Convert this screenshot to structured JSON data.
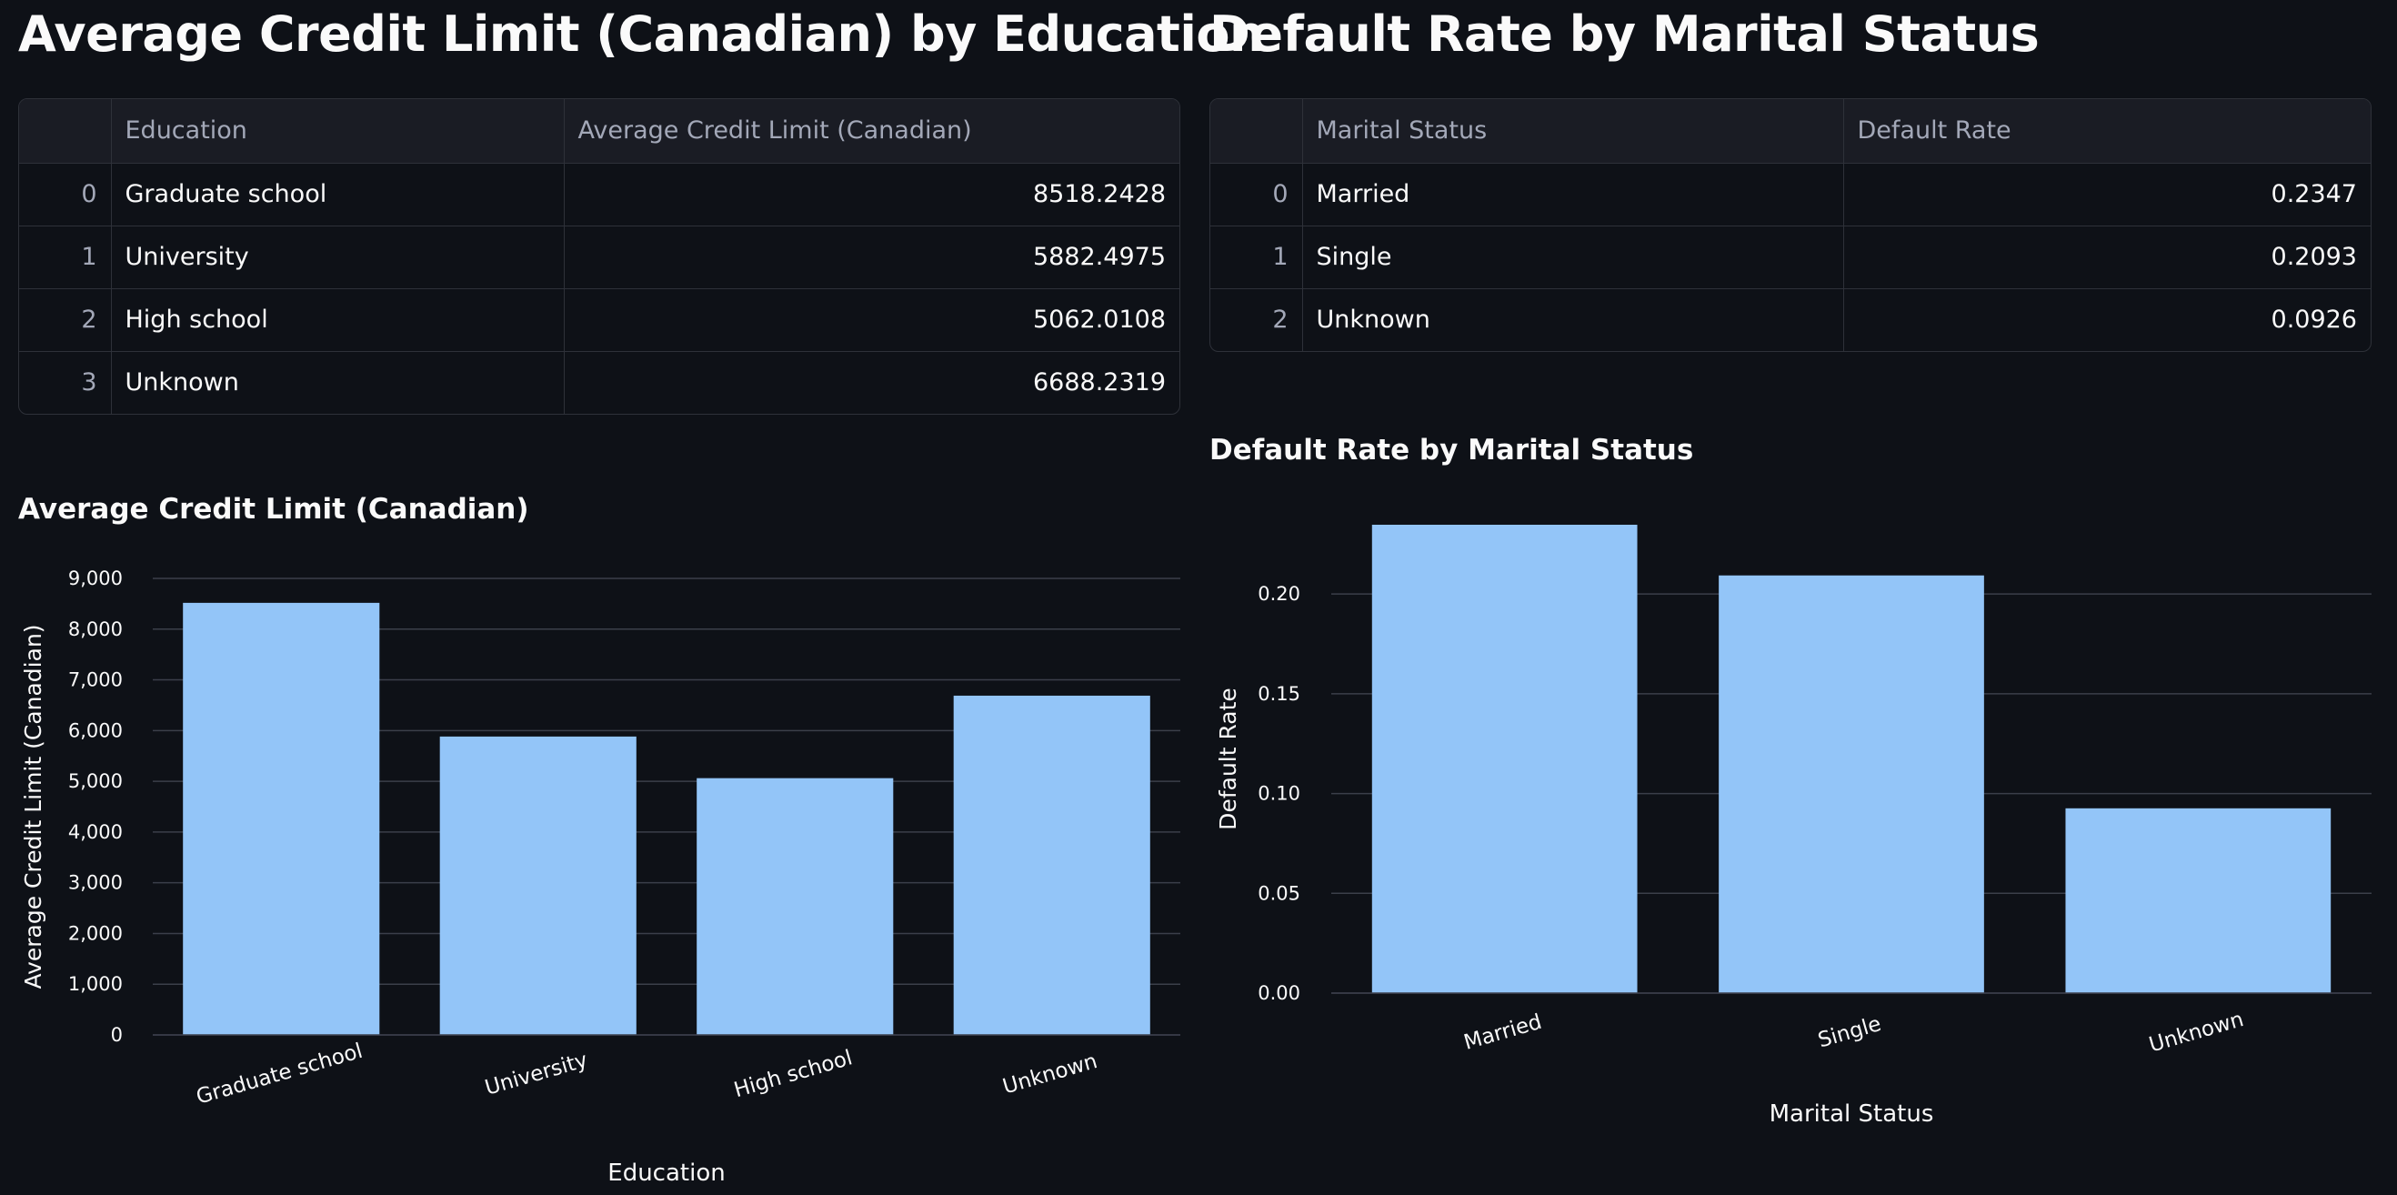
{
  "left": {
    "title": "Average Credit Limit (Canadian) by Education",
    "table": {
      "columns": [
        "",
        "Education",
        "Average Credit Limit (Canadian)"
      ],
      "rows": [
        {
          "index": "0",
          "label": "Graduate school",
          "value": "8518.2428"
        },
        {
          "index": "1",
          "label": "University",
          "value": "5882.4975"
        },
        {
          "index": "2",
          "label": "High school",
          "value": "5062.0108"
        },
        {
          "index": "3",
          "label": "Unknown",
          "value": "6688.2319"
        }
      ]
    },
    "chart_title": "Average Credit Limit (Canadian)"
  },
  "right": {
    "title": "Default Rate by Marital Status",
    "table": {
      "columns": [
        "",
        "Marital Status",
        "Default Rate"
      ],
      "rows": [
        {
          "index": "0",
          "label": "Married",
          "value": "0.2347"
        },
        {
          "index": "1",
          "label": "Single",
          "value": "0.2093"
        },
        {
          "index": "2",
          "label": "Unknown",
          "value": "0.0926"
        }
      ]
    },
    "chart_title": "Default Rate by Marital Status"
  },
  "chart_data": [
    {
      "type": "bar",
      "title": "Average Credit Limit (Canadian)",
      "categories": [
        "Graduate school",
        "University",
        "High school",
        "Unknown"
      ],
      "values": [
        8518.2428,
        5882.4975,
        5062.0108,
        6688.2319
      ],
      "xlabel": "Education",
      "ylabel": "Average Credit Limit (Canadian)",
      "ylim": [
        0,
        9000
      ],
      "yticks": [
        0,
        1000,
        2000,
        3000,
        4000,
        5000,
        6000,
        7000,
        8000,
        9000
      ],
      "ytick_labels": [
        "0",
        "1,000",
        "2,000",
        "3,000",
        "4,000",
        "5,000",
        "6,000",
        "7,000",
        "8,000",
        "9,000"
      ],
      "grid": true,
      "bar_color": "#93c5f8"
    },
    {
      "type": "bar",
      "title": "Default Rate by Marital Status",
      "categories": [
        "Married",
        "Single",
        "Unknown"
      ],
      "values": [
        0.2347,
        0.2093,
        0.0926
      ],
      "xlabel": "Marital Status",
      "ylabel": "Default Rate",
      "ylim": [
        0,
        0.2347
      ],
      "yticks": [
        0,
        0.05,
        0.1,
        0.15,
        0.2
      ],
      "ytick_labels": [
        "0.00",
        "0.05",
        "0.10",
        "0.15",
        "0.20"
      ],
      "grid": true,
      "bar_color": "#93c5f8"
    }
  ],
  "colors": {
    "background": "#0e1117",
    "text": "#fafafa",
    "muted_text": "#a3a8b8",
    "table_border": "#2e3139",
    "table_header_bg": "#1a1c24",
    "gridline": "#3b3f4a",
    "bar": "#93c5f8"
  }
}
